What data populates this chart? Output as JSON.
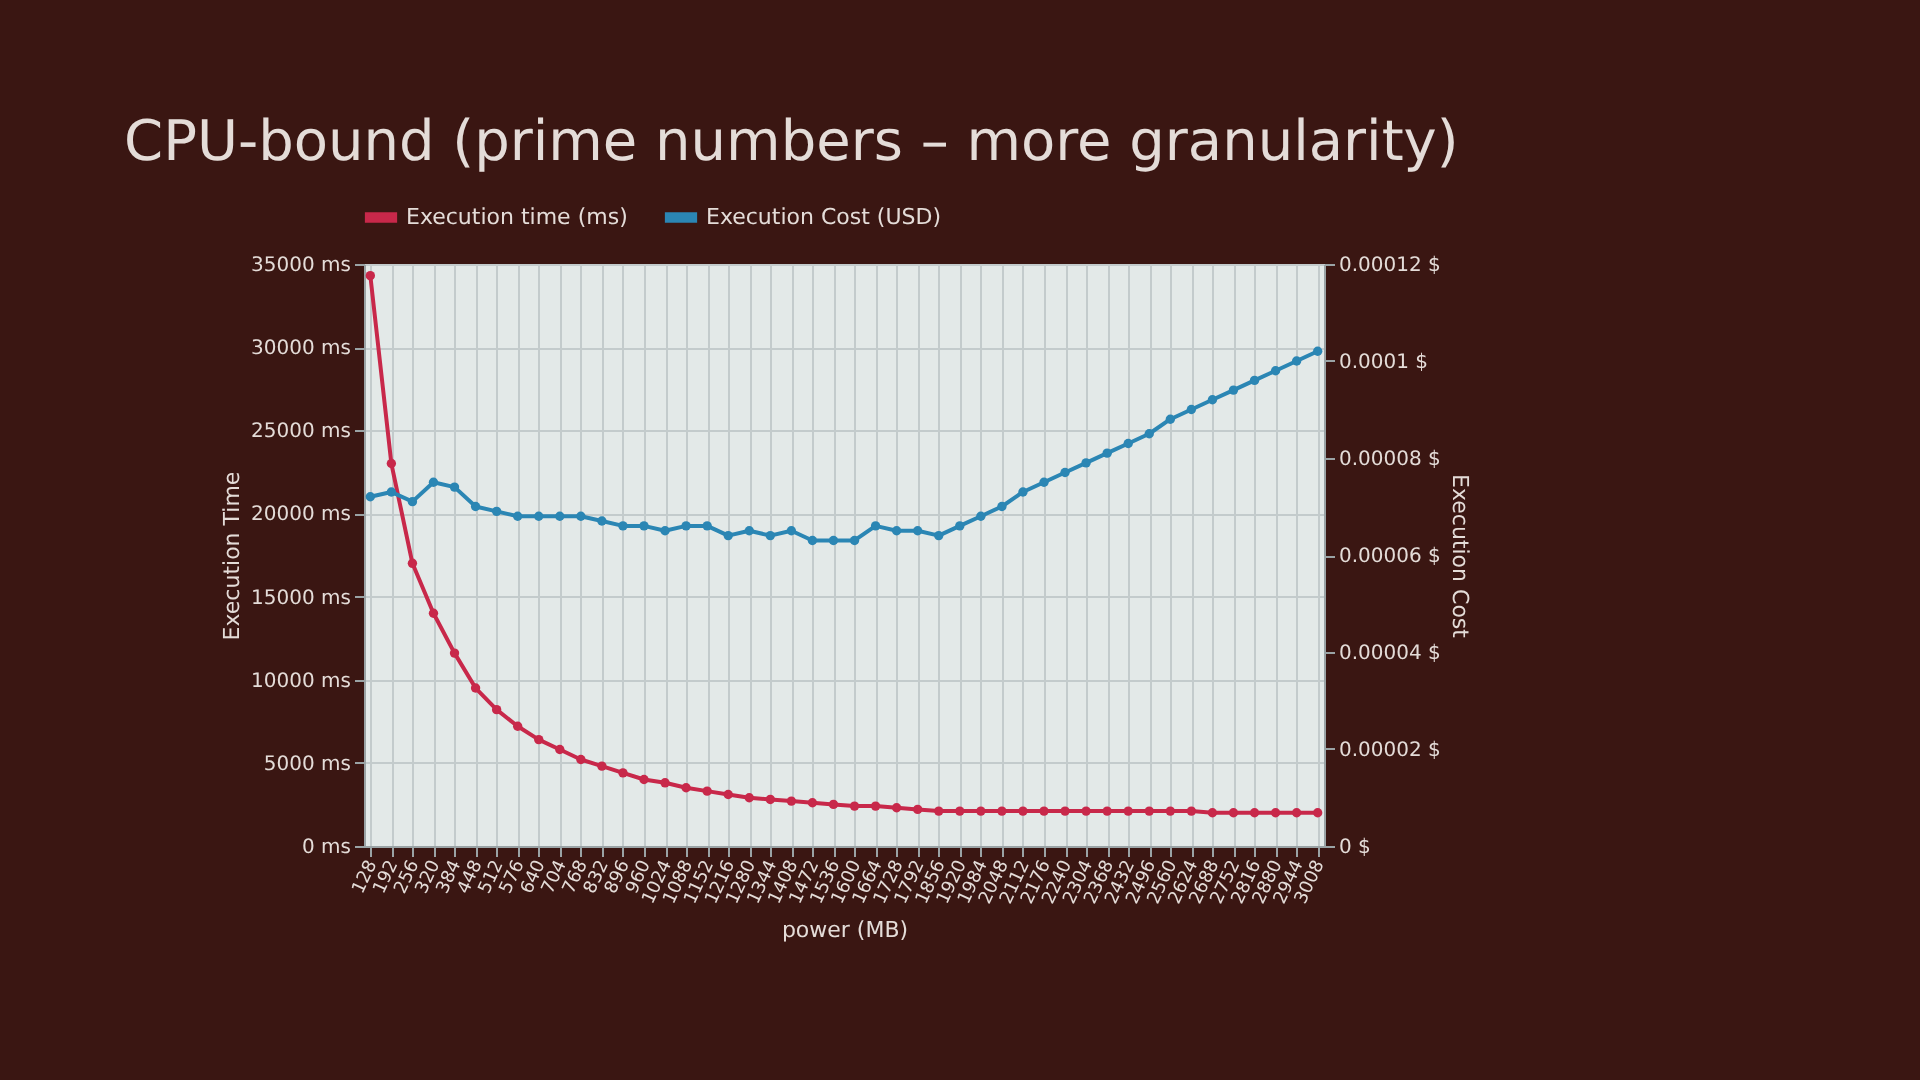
{
  "chart_data": {
    "type": "line",
    "title": "CPU-bound (prime numbers – more granularity)",
    "xlabel": "power (MB)",
    "ylabel": "Execution Time",
    "y2label": "Execution Cost",
    "categories": [
      "128",
      "192",
      "256",
      "320",
      "384",
      "448",
      "512",
      "576",
      "640",
      "704",
      "768",
      "832",
      "896",
      "960",
      "1024",
      "1088",
      "1152",
      "1216",
      "1280",
      "1344",
      "1408",
      "1472",
      "1536",
      "1600",
      "1664",
      "1728",
      "1792",
      "1856",
      "1920",
      "1984",
      "2048",
      "2112",
      "2176",
      "2240",
      "2304",
      "2368",
      "2432",
      "2496",
      "2560",
      "2624",
      "2688",
      "2752",
      "2816",
      "2880",
      "2944",
      "3008"
    ],
    "series": [
      {
        "name": "Execution time (ms)",
        "color": "#c8284a",
        "values": [
          34300,
          23000,
          17000,
          14000,
          11600,
          9500,
          8200,
          7200,
          6400,
          5800,
          5200,
          4800,
          4400,
          4000,
          3800,
          3500,
          3300,
          3100,
          2900,
          2800,
          2700,
          2600,
          2500,
          2400,
          2400,
          2300,
          2200,
          2100,
          2100,
          2100,
          2100,
          2100,
          2100,
          2100,
          2100,
          2100,
          2100,
          2100,
          2100,
          2100,
          2000,
          2000,
          2000,
          2000,
          2000,
          2000
        ]
      },
      {
        "name": "Execution Cost (USD)",
        "color": "#2b86b4",
        "axis": "y2",
        "values": [
          7.2e-05,
          7.3e-05,
          7.1e-05,
          7.5e-05,
          7.4e-05,
          7e-05,
          6.9e-05,
          6.8e-05,
          6.8e-05,
          6.8e-05,
          6.8e-05,
          6.7e-05,
          6.6e-05,
          6.6e-05,
          6.5e-05,
          6.6e-05,
          6.6e-05,
          6.4e-05,
          6.5e-05,
          6.4e-05,
          6.5e-05,
          6.3e-05,
          6.3e-05,
          6.3e-05,
          6.6e-05,
          6.5e-05,
          6.5e-05,
          6.4e-05,
          6.6e-05,
          6.8e-05,
          7e-05,
          7.3e-05,
          7.5e-05,
          7.7e-05,
          7.9e-05,
          8.1e-05,
          8.3e-05,
          8.5e-05,
          8.8e-05,
          9e-05,
          9.2e-05,
          9.4e-05,
          9.6e-05,
          9.8e-05,
          0.0001,
          0.000102
        ]
      }
    ],
    "ylim": [
      0,
      35000
    ],
    "yticks": [
      {
        "value": 0,
        "label": "0 ms"
      },
      {
        "value": 5000,
        "label": "5000 ms"
      },
      {
        "value": 10000,
        "label": "10000 ms"
      },
      {
        "value": 15000,
        "label": "15000 ms"
      },
      {
        "value": 20000,
        "label": "20000 ms"
      },
      {
        "value": 25000,
        "label": "25000 ms"
      },
      {
        "value": 30000,
        "label": "30000 ms"
      },
      {
        "value": 35000,
        "label": "35000 ms"
      }
    ],
    "y2lim": [
      0,
      0.00012
    ],
    "y2ticks": [
      {
        "value": 0,
        "label": "0 $"
      },
      {
        "value": 2e-05,
        "label": "0.00002 $"
      },
      {
        "value": 4e-05,
        "label": "0.00004 $"
      },
      {
        "value": 6e-05,
        "label": "0.00006 $"
      },
      {
        "value": 8e-05,
        "label": "0.00008 $"
      },
      {
        "value": 0.0001,
        "label": "0.0001 $"
      },
      {
        "value": 0.00012,
        "label": "0.00012 $"
      }
    ],
    "grid": true,
    "legend": "top",
    "marker": "circle",
    "line_style": "solid"
  }
}
